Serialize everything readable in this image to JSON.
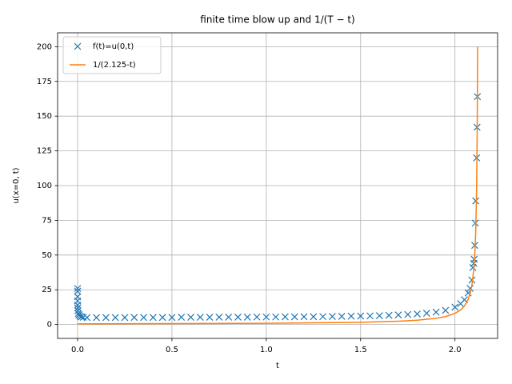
{
  "chart_data": {
    "type": "scatter",
    "title": "finite time blow up and 1/(T − t)",
    "x_label": "t",
    "y_label": "u(x=0, t)",
    "xlim": [
      -0.106,
      2.226
    ],
    "ylim": [
      -10,
      210
    ],
    "xticks": [
      {
        "value": 0,
        "label": "0.0"
      },
      {
        "value": 0.5,
        "label": "0.5"
      },
      {
        "value": 1,
        "label": "1.0"
      },
      {
        "value": 1.5,
        "label": "1.5"
      },
      {
        "value": 2,
        "label": "2.0"
      }
    ],
    "yticks": [
      0,
      25,
      50,
      75,
      100,
      125,
      150,
      175,
      200
    ],
    "grid": true,
    "legend": "upper left",
    "series": [
      {
        "name": "f(t)=u(0,t)",
        "color": "#1f77b4",
        "marker": "x",
        "x": [
          0,
          0,
          0,
          0,
          0,
          0.001,
          0.002,
          0.004,
          0.007,
          0.012,
          0.02,
          0.03,
          0.05,
          0.1,
          0.15,
          0.2,
          0.25,
          0.3,
          0.35,
          0.4,
          0.45,
          0.5,
          0.55,
          0.6,
          0.65,
          0.7,
          0.75,
          0.8,
          0.85,
          0.9,
          0.95,
          1.0,
          1.05,
          1.1,
          1.15,
          1.2,
          1.25,
          1.3,
          1.35,
          1.4,
          1.45,
          1.5,
          1.55,
          1.6,
          1.65,
          1.7,
          1.75,
          1.8,
          1.85,
          1.9,
          1.95,
          2.0,
          2.03,
          2.05,
          2.07,
          2.08,
          2.09,
          2.095,
          2.1,
          2.102,
          2.105,
          2.108,
          2.11,
          2.115,
          2.117,
          2.119
        ],
        "values": [
          26,
          24,
          20,
          17,
          14,
          12,
          10,
          8,
          7,
          6,
          5.5,
          5.2,
          5.0,
          5.0,
          5.0,
          5.0,
          5.0,
          5.1,
          5.1,
          5.1,
          5.1,
          5.1,
          5.2,
          5.2,
          5.2,
          5.2,
          5.3,
          5.3,
          5.3,
          5.3,
          5.4,
          5.4,
          5.4,
          5.5,
          5.5,
          5.6,
          5.6,
          5.7,
          5.8,
          5.9,
          6.0,
          6.1,
          6.2,
          6.4,
          6.6,
          6.9,
          7.2,
          7.6,
          8.1,
          8.9,
          10.2,
          12.5,
          15,
          17.8,
          22.7,
          26,
          32,
          41,
          44,
          47,
          57,
          73,
          89,
          120,
          142,
          164
        ]
      },
      {
        "name": "1/(2.125-t)",
        "color": "#ff7f0e",
        "type": "line",
        "x": [
          0,
          0.5,
          1.0,
          1.5,
          1.7,
          1.8,
          1.9,
          1.95,
          2.0,
          2.03,
          2.05,
          2.07,
          2.08,
          2.09,
          2.1,
          2.105,
          2.11,
          2.115,
          2.118,
          2.12
        ],
        "values": [
          0.47,
          0.62,
          0.89,
          1.6,
          2.35,
          3.08,
          4.44,
          5.71,
          8,
          10.5,
          13.3,
          18.2,
          22.2,
          28.6,
          40,
          50,
          66.7,
          100,
          142.9,
          200
        ]
      }
    ]
  }
}
